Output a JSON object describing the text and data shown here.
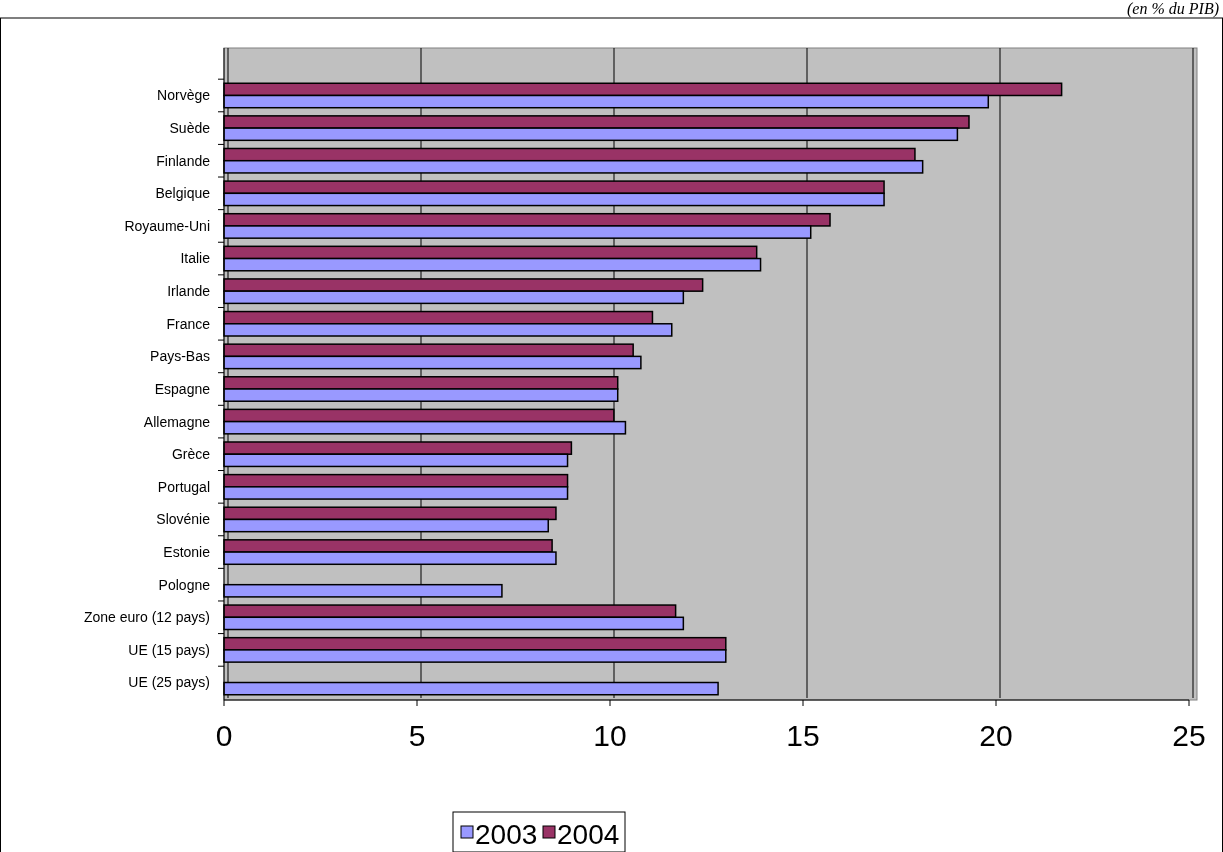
{
  "chart_data": {
    "type": "bar",
    "orientation": "horizontal",
    "subtitle": "(en % du PIB)",
    "categories": [
      "Norvège",
      "Suède",
      "Finlande",
      "Belgique",
      "Royaume-Uni",
      "Italie",
      "Irlande",
      "France",
      "Pays-Bas",
      "Espagne",
      "Allemagne",
      "Grèce",
      "Portugal",
      "Slovénie",
      "Estonie",
      "Pologne",
      "Zone euro (12 pays)",
      "UE (15 pays)",
      "UE (25 pays)"
    ],
    "series": [
      {
        "name": "2003",
        "color": "#9999ff",
        "values": [
          19.8,
          19.0,
          18.1,
          17.1,
          15.2,
          13.9,
          11.9,
          11.6,
          10.8,
          10.2,
          10.4,
          8.9,
          8.9,
          8.4,
          8.6,
          7.2,
          11.9,
          13.0,
          12.8
        ]
      },
      {
        "name": "2004",
        "color": "#993366",
        "values": [
          21.7,
          19.3,
          17.9,
          17.1,
          15.7,
          13.8,
          12.4,
          11.1,
          10.6,
          10.2,
          10.1,
          9.0,
          8.9,
          8.6,
          8.5,
          0,
          11.7,
          13.0,
          0
        ]
      }
    ],
    "xlim": [
      0,
      25
    ],
    "xticks": [
      0,
      5,
      10,
      15,
      20,
      25
    ],
    "grid": "x",
    "legend": "bottom"
  }
}
